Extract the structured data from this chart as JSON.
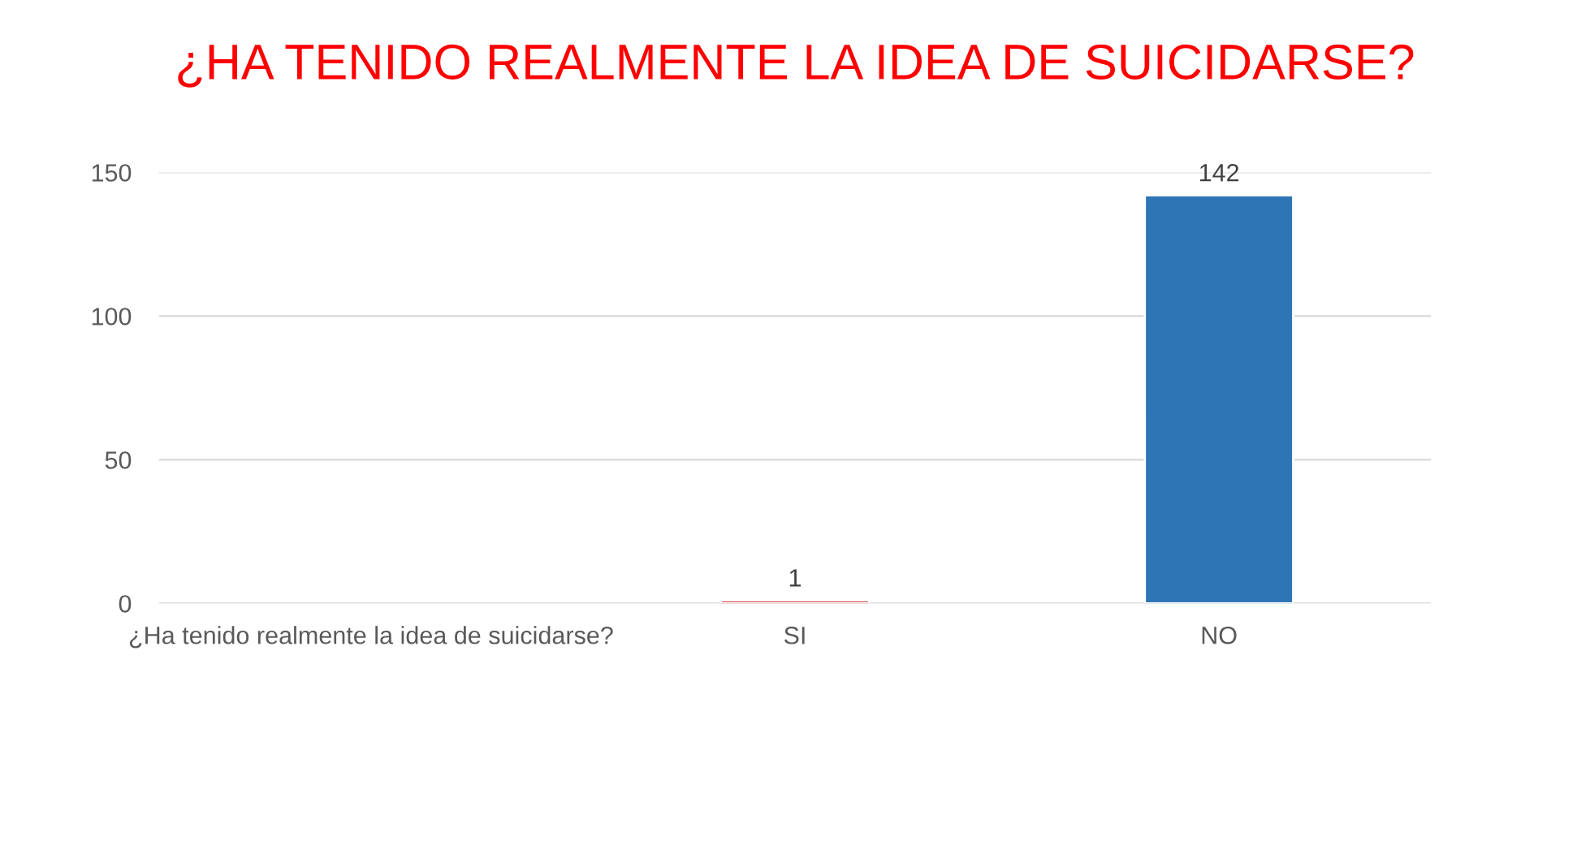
{
  "chart_data": {
    "type": "bar",
    "title": "¿HA TENIDO REALMENTE LA IDEA DE SUICIDARSE?",
    "categories": [
      "¿Ha tenido realmente la idea de suicidarse?",
      "SI",
      "NO"
    ],
    "values": [
      null,
      1,
      142
    ],
    "colors": [
      "#2e75b6",
      "#c00000",
      "#2e75b6"
    ],
    "ylim": [
      0,
      150
    ],
    "yticks": [
      0,
      50,
      100,
      150
    ],
    "grid": "y",
    "data_labels": true,
    "legend": false
  }
}
